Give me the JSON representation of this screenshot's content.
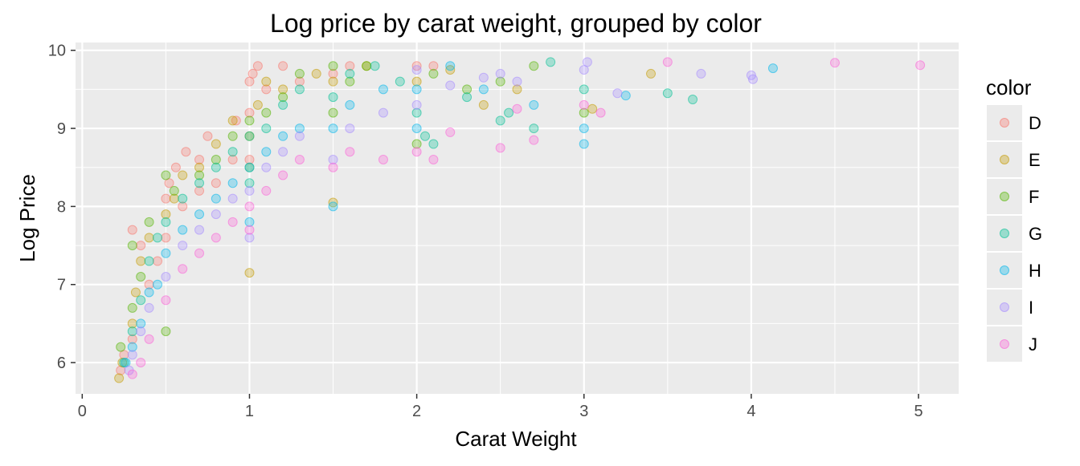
{
  "chart_data": {
    "type": "scatter",
    "title": "Log price by carat weight, grouped by color",
    "xlabel": "Carat Weight",
    "ylabel": "Log Price",
    "xlim": [
      -0.04,
      5.24
    ],
    "ylim": [
      5.6,
      10.1
    ],
    "x_ticks": [
      0,
      1,
      2,
      3,
      4,
      5
    ],
    "y_ticks": [
      6,
      7,
      8,
      9,
      10
    ],
    "x_tick_labels": [
      "0",
      "1",
      "2",
      "3",
      "4",
      "5"
    ],
    "y_tick_labels": [
      "6",
      "7",
      "8",
      "9",
      "10"
    ],
    "grid": true,
    "background": "#ebebeb",
    "point_opacity": 0.3,
    "legend": {
      "title": "color",
      "position": "right"
    },
    "series": [
      {
        "name": "D",
        "color": "#F8766D",
        "points": [
          [
            0.23,
            5.9
          ],
          [
            0.25,
            6.1
          ],
          [
            0.3,
            6.3
          ],
          [
            0.3,
            7.7
          ],
          [
            0.35,
            7.5
          ],
          [
            0.4,
            7.0
          ],
          [
            0.45,
            7.3
          ],
          [
            0.5,
            7.6
          ],
          [
            0.5,
            8.1
          ],
          [
            0.52,
            8.3
          ],
          [
            0.56,
            8.5
          ],
          [
            0.6,
            8.0
          ],
          [
            0.62,
            8.7
          ],
          [
            0.7,
            8.2
          ],
          [
            0.7,
            8.6
          ],
          [
            0.75,
            8.9
          ],
          [
            0.8,
            8.3
          ],
          [
            0.9,
            8.6
          ],
          [
            0.92,
            9.1
          ],
          [
            1.0,
            8.6
          ],
          [
            1.0,
            9.2
          ],
          [
            1.0,
            9.6
          ],
          [
            1.02,
            9.7
          ],
          [
            1.05,
            9.8
          ],
          [
            1.1,
            9.5
          ],
          [
            1.2,
            9.8
          ],
          [
            1.3,
            9.6
          ],
          [
            1.5,
            9.7
          ],
          [
            1.6,
            9.8
          ],
          [
            2.0,
            9.8
          ],
          [
            2.1,
            9.8
          ]
        ]
      },
      {
        "name": "E",
        "color": "#C49A00",
        "points": [
          [
            0.22,
            5.8
          ],
          [
            0.24,
            6.0
          ],
          [
            0.3,
            6.5
          ],
          [
            0.32,
            6.9
          ],
          [
            0.35,
            7.3
          ],
          [
            0.4,
            7.6
          ],
          [
            0.5,
            7.9
          ],
          [
            0.55,
            8.1
          ],
          [
            0.6,
            8.4
          ],
          [
            0.7,
            8.5
          ],
          [
            0.8,
            8.8
          ],
          [
            0.9,
            9.1
          ],
          [
            1.0,
            7.15
          ],
          [
            1.0,
            8.9
          ],
          [
            1.05,
            9.3
          ],
          [
            1.1,
            9.6
          ],
          [
            1.2,
            9.5
          ],
          [
            1.4,
            9.7
          ],
          [
            1.5,
            8.05
          ],
          [
            1.5,
            9.6
          ],
          [
            1.7,
            9.8
          ],
          [
            2.0,
            9.6
          ],
          [
            2.2,
            9.75
          ],
          [
            2.4,
            9.3
          ],
          [
            2.6,
            9.5
          ],
          [
            3.05,
            9.25
          ],
          [
            3.4,
            9.7
          ]
        ]
      },
      {
        "name": "F",
        "color": "#53B400",
        "points": [
          [
            0.23,
            6.2
          ],
          [
            0.3,
            6.7
          ],
          [
            0.3,
            7.5
          ],
          [
            0.35,
            7.1
          ],
          [
            0.4,
            7.8
          ],
          [
            0.5,
            8.4
          ],
          [
            0.5,
            6.4
          ],
          [
            0.55,
            8.2
          ],
          [
            0.7,
            8.4
          ],
          [
            0.8,
            8.6
          ],
          [
            0.9,
            8.9
          ],
          [
            1.0,
            8.5
          ],
          [
            1.0,
            9.1
          ],
          [
            1.1,
            9.2
          ],
          [
            1.2,
            9.4
          ],
          [
            1.3,
            9.7
          ],
          [
            1.5,
            9.2
          ],
          [
            1.5,
            9.8
          ],
          [
            1.6,
            9.6
          ],
          [
            1.7,
            9.8
          ],
          [
            2.0,
            8.8
          ],
          [
            2.1,
            9.7
          ],
          [
            2.3,
            9.5
          ],
          [
            2.5,
            9.6
          ],
          [
            2.7,
            9.8
          ],
          [
            3.0,
            9.2
          ]
        ]
      },
      {
        "name": "G",
        "color": "#00C094",
        "points": [
          [
            0.25,
            6.0
          ],
          [
            0.3,
            6.4
          ],
          [
            0.35,
            6.8
          ],
          [
            0.4,
            7.3
          ],
          [
            0.45,
            7.6
          ],
          [
            0.5,
            7.8
          ],
          [
            0.6,
            8.1
          ],
          [
            0.7,
            8.3
          ],
          [
            0.8,
            8.5
          ],
          [
            0.9,
            8.7
          ],
          [
            1.0,
            8.3
          ],
          [
            1.0,
            8.9
          ],
          [
            1.1,
            9.0
          ],
          [
            1.2,
            9.3
          ],
          [
            1.3,
            9.5
          ],
          [
            1.5,
            9.4
          ],
          [
            1.6,
            9.7
          ],
          [
            1.75,
            9.8
          ],
          [
            1.9,
            9.6
          ],
          [
            2.0,
            9.2
          ],
          [
            2.05,
            8.9
          ],
          [
            2.1,
            8.8
          ],
          [
            2.3,
            9.4
          ],
          [
            2.5,
            9.1
          ],
          [
            2.55,
            9.2
          ],
          [
            2.7,
            9.0
          ],
          [
            2.8,
            9.85
          ],
          [
            3.0,
            9.5
          ],
          [
            3.5,
            9.45
          ],
          [
            3.65,
            9.37
          ]
        ]
      },
      {
        "name": "H",
        "color": "#00B6EB",
        "points": [
          [
            0.26,
            6.0
          ],
          [
            0.3,
            6.2
          ],
          [
            0.35,
            6.5
          ],
          [
            0.4,
            6.9
          ],
          [
            0.45,
            7.0
          ],
          [
            0.5,
            7.4
          ],
          [
            0.6,
            7.7
          ],
          [
            0.7,
            7.9
          ],
          [
            0.8,
            8.1
          ],
          [
            0.9,
            8.3
          ],
          [
            1.0,
            7.8
          ],
          [
            1.0,
            8.5
          ],
          [
            1.1,
            8.7
          ],
          [
            1.2,
            8.9
          ],
          [
            1.3,
            9.0
          ],
          [
            1.5,
            8.0
          ],
          [
            1.5,
            9.0
          ],
          [
            1.6,
            9.3
          ],
          [
            1.8,
            9.5
          ],
          [
            2.0,
            9.0
          ],
          [
            2.0,
            9.5
          ],
          [
            2.2,
            9.8
          ],
          [
            2.4,
            9.5
          ],
          [
            2.7,
            9.3
          ],
          [
            3.0,
            8.8
          ],
          [
            3.0,
            9.0
          ],
          [
            3.25,
            9.42
          ],
          [
            4.13,
            9.77
          ]
        ]
      },
      {
        "name": "I",
        "color": "#A58AFF",
        "points": [
          [
            0.28,
            5.9
          ],
          [
            0.3,
            6.1
          ],
          [
            0.35,
            6.4
          ],
          [
            0.4,
            6.7
          ],
          [
            0.5,
            7.1
          ],
          [
            0.6,
            7.5
          ],
          [
            0.7,
            7.7
          ],
          [
            0.8,
            7.9
          ],
          [
            0.9,
            8.1
          ],
          [
            1.0,
            7.6
          ],
          [
            1.0,
            8.2
          ],
          [
            1.1,
            8.5
          ],
          [
            1.2,
            8.7
          ],
          [
            1.3,
            8.9
          ],
          [
            1.5,
            8.6
          ],
          [
            1.6,
            9.0
          ],
          [
            1.8,
            9.2
          ],
          [
            2.0,
            9.3
          ],
          [
            2.0,
            9.75
          ],
          [
            2.2,
            9.55
          ],
          [
            2.4,
            9.65
          ],
          [
            2.5,
            9.7
          ],
          [
            2.6,
            9.6
          ],
          [
            3.0,
            9.75
          ],
          [
            3.02,
            9.85
          ],
          [
            3.2,
            9.45
          ],
          [
            3.7,
            9.7
          ],
          [
            4.0,
            9.68
          ],
          [
            4.01,
            9.63
          ]
        ]
      },
      {
        "name": "J",
        "color": "#FB61D7",
        "points": [
          [
            0.3,
            5.85
          ],
          [
            0.35,
            6.0
          ],
          [
            0.4,
            6.3
          ],
          [
            0.5,
            6.8
          ],
          [
            0.6,
            7.2
          ],
          [
            0.7,
            7.4
          ],
          [
            0.8,
            7.6
          ],
          [
            0.9,
            7.8
          ],
          [
            1.0,
            7.7
          ],
          [
            1.0,
            8.0
          ],
          [
            1.1,
            8.2
          ],
          [
            1.2,
            8.4
          ],
          [
            1.3,
            8.6
          ],
          [
            1.5,
            8.5
          ],
          [
            1.6,
            8.7
          ],
          [
            1.8,
            8.6
          ],
          [
            2.0,
            8.7
          ],
          [
            2.1,
            8.6
          ],
          [
            2.2,
            8.95
          ],
          [
            2.5,
            8.75
          ],
          [
            2.6,
            9.25
          ],
          [
            2.7,
            8.85
          ],
          [
            3.0,
            9.3
          ],
          [
            3.1,
            9.2
          ],
          [
            3.5,
            9.85
          ],
          [
            4.5,
            9.84
          ],
          [
            5.01,
            9.81
          ]
        ]
      }
    ]
  }
}
